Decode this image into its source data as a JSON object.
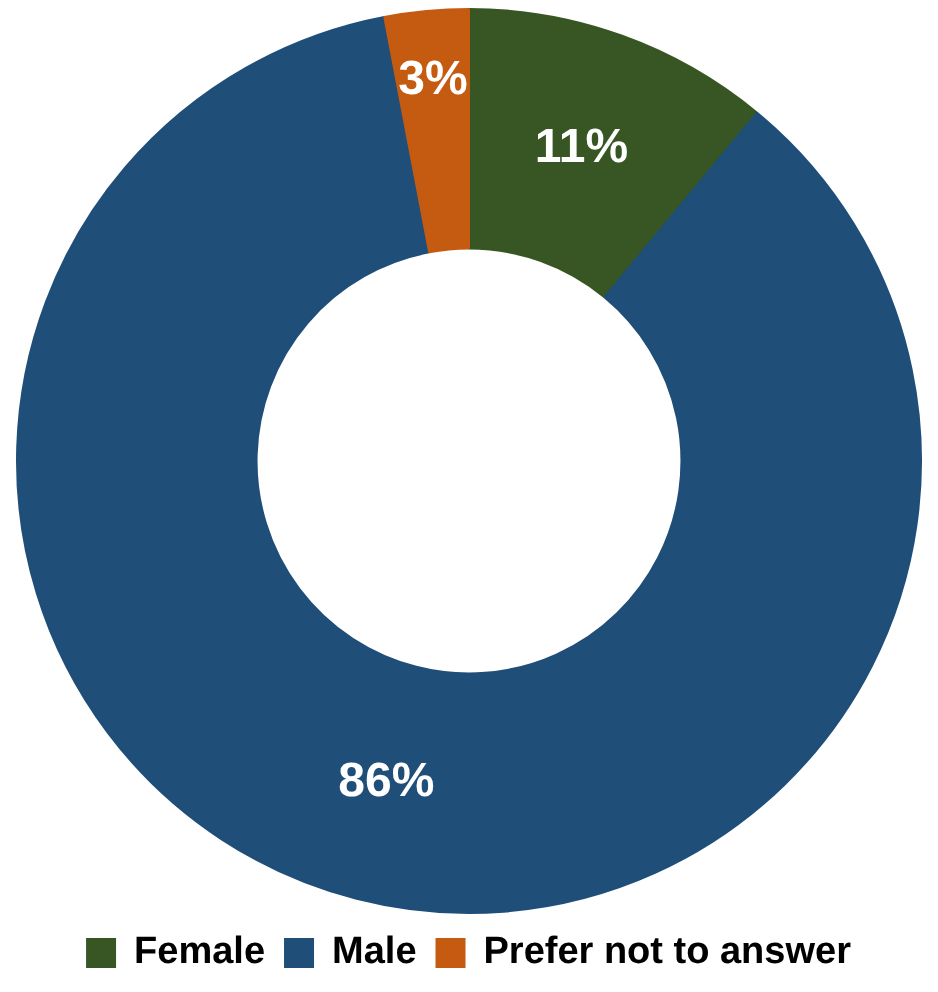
{
  "chart_data": {
    "type": "donut",
    "categories": [
      "Female",
      "Male",
      "Prefer not to answer"
    ],
    "values": [
      11,
      86,
      3
    ],
    "colors": [
      "#375623",
      "#1f4e79",
      "#c55a11"
    ],
    "value_labels": [
      "11%",
      "86%",
      "3%"
    ],
    "legend": "bottom"
  }
}
